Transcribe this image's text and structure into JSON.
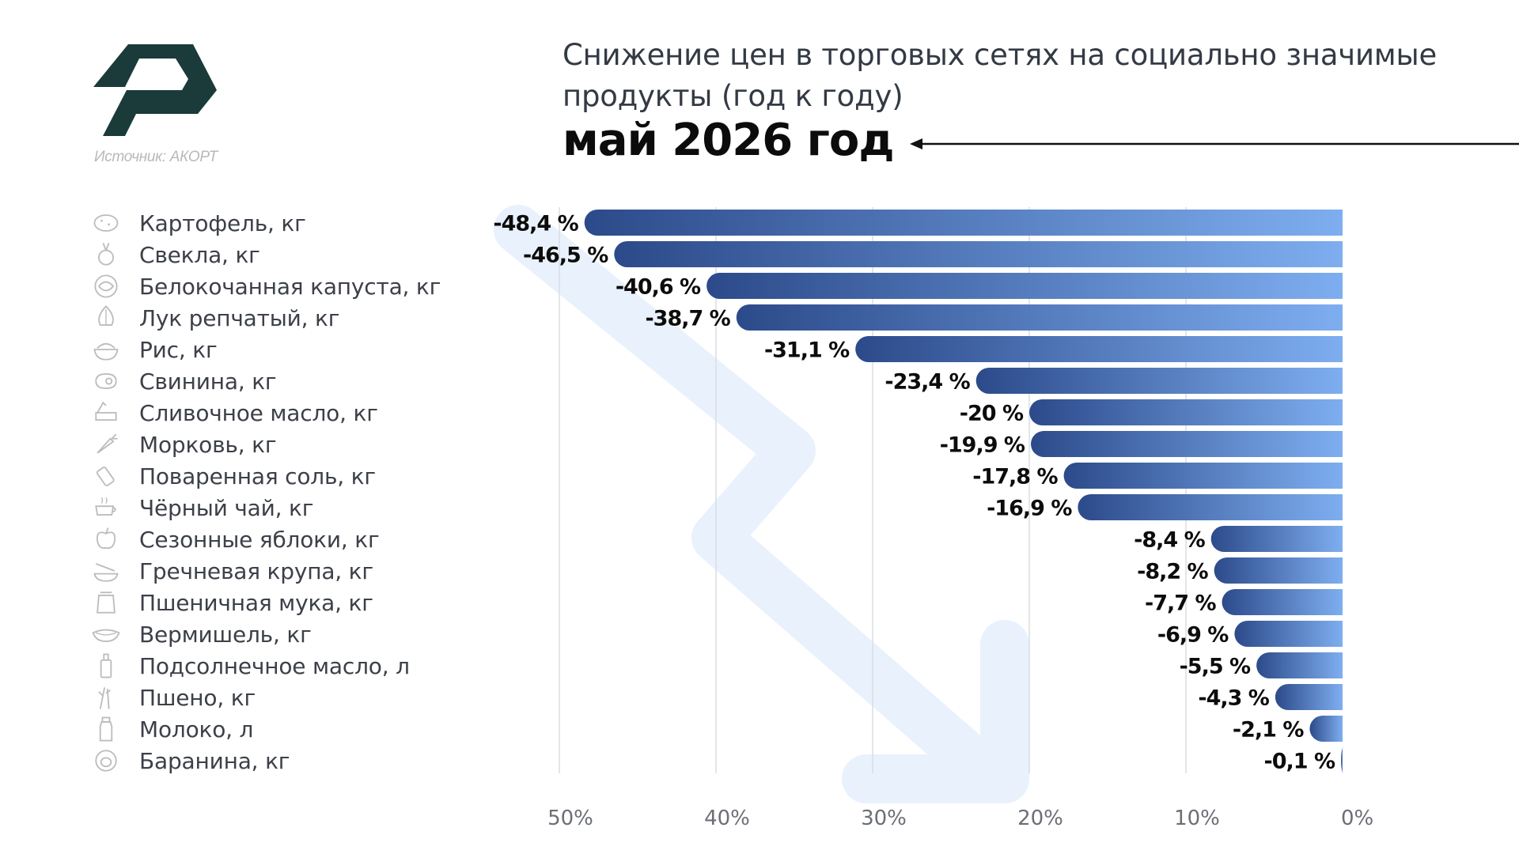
{
  "brand": {
    "logo_icon": "akort-logo-icon",
    "color": "#1b3a3a"
  },
  "source": "Источник: АКОРТ",
  "title": "Снижение цен в торговых сетях на социально значимые продукты (год к году)",
  "subtitle": "май 2026 год",
  "colors": {
    "bar_dark": "#2c4a8a",
    "bar_light": "#7eaef0",
    "grid": "#d9dde3",
    "big_arrow": "#e9f1fd",
    "label_text": "#3c4048",
    "value_text": "#0c0c0c",
    "axis_text": "#6b6f75"
  },
  "items": [
    {
      "label": "Картофель, кг",
      "icon": "potato-icon"
    },
    {
      "label": "Свекла, кг",
      "icon": "beet-icon"
    },
    {
      "label": "Белокочанная капуста, кг",
      "icon": "cabbage-icon"
    },
    {
      "label": "Лук репчатый, кг",
      "icon": "onion-icon"
    },
    {
      "label": "Рис, кг",
      "icon": "rice-bowl-icon"
    },
    {
      "label": "Свинина, кг",
      "icon": "meat-icon"
    },
    {
      "label": "Сливочное масло, кг",
      "icon": "butter-icon"
    },
    {
      "label": "Морковь, кг",
      "icon": "carrot-icon"
    },
    {
      "label": "Поваренная соль, кг",
      "icon": "salt-icon"
    },
    {
      "label": "Чёрный чай, кг",
      "icon": "tea-cup-icon"
    },
    {
      "label": "Сезонные яблоки, кг",
      "icon": "apple-icon"
    },
    {
      "label": "Гречневая крупа, кг",
      "icon": "buckwheat-icon"
    },
    {
      "label": "Пшеничная мука, кг",
      "icon": "flour-bag-icon"
    },
    {
      "label": "Вермишель, кг",
      "icon": "noodle-bowl-icon"
    },
    {
      "label": "Подсолнечное масло, л",
      "icon": "oil-bottle-icon"
    },
    {
      "label": "Пшено, кг",
      "icon": "millet-icon"
    },
    {
      "label": "Молоко, л",
      "icon": "milk-bottle-icon"
    },
    {
      "label": "Баранина, кг",
      "icon": "sheep-icon"
    }
  ],
  "chart_data": {
    "type": "bar",
    "orientation": "horizontal",
    "direction": "right-to-left",
    "categories": [
      "Картофель, кг",
      "Свекла, кг",
      "Белокочанная капуста, кг",
      "Лук репчатый, кг",
      "Рис, кг",
      "Свинина, кг",
      "Сливочное масло, кг",
      "Морковь, кг",
      "Поваренная соль, кг",
      "Чёрный чай, кг",
      "Сезонные яблоки, кг",
      "Гречневая крупа, кг",
      "Пшеничная мука, кг",
      "Вермишель, кг",
      "Подсолнечное масло, л",
      "Пшено, кг",
      "Молоко, л",
      "Баранина, кг"
    ],
    "values": [
      -48.4,
      -46.5,
      -40.6,
      -38.7,
      -31.1,
      -23.4,
      -20,
      -19.9,
      -17.8,
      -16.9,
      -8.4,
      -8.2,
      -7.7,
      -6.9,
      -5.5,
      -4.3,
      -2.1,
      -0.1
    ],
    "value_labels": [
      "-48,4 %",
      "-46,5 %",
      "-40,6 %",
      "-38,7 %",
      "-31,1 %",
      "-23,4 %",
      "-20 %",
      "-19,9 %",
      "-17,8 %",
      "-16,9 %",
      "-8,4 %",
      "-8,2 %",
      "-7,7 %",
      "-6,9 %",
      "-5,5 %",
      "-4,3 %",
      "-2,1 %",
      "-0,1 %"
    ],
    "x_ticks": [
      "50%",
      "40%",
      "30%",
      "20%",
      "10%",
      "0%"
    ],
    "x_tick_values": [
      50,
      40,
      30,
      20,
      10,
      0
    ],
    "xlim": [
      0,
      50
    ],
    "grid": true,
    "title": "Снижение цен в торговых сетях на социально значимые продукты (год к году)",
    "subtitle": "май 2026 год"
  }
}
